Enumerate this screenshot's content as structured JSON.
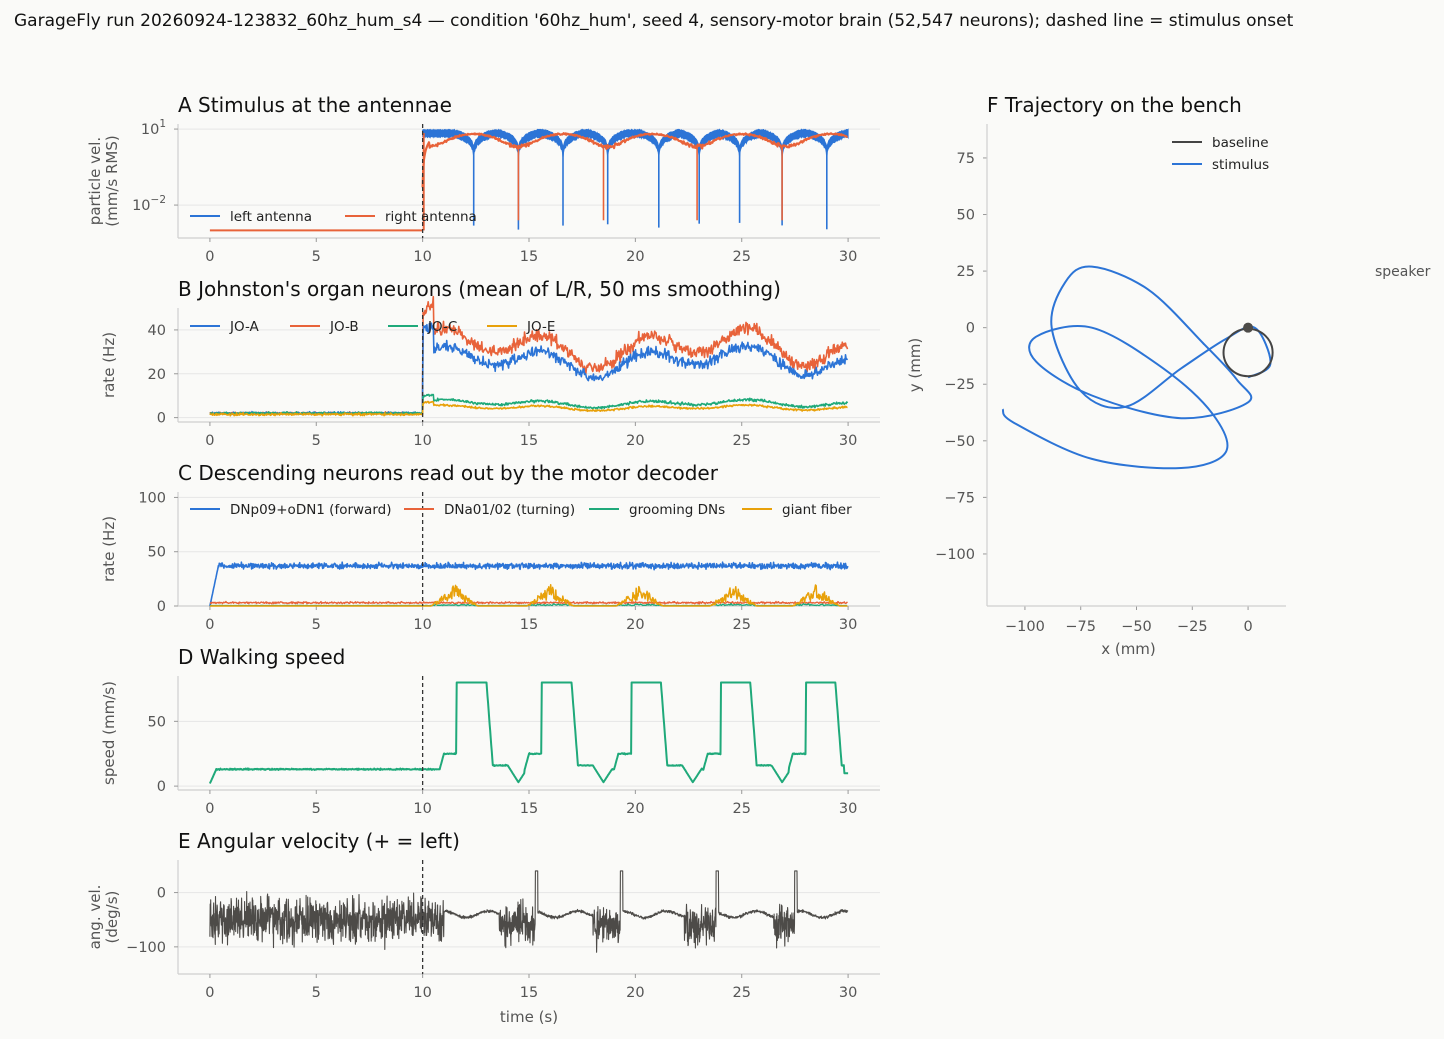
{
  "suptitle": "GarageFly run 20260924-123832_60hz_hum_s4 — condition '60hz_hum', seed 4, sensory-motor brain (52,547 neurons); dashed line = stimulus onset",
  "colors": {
    "blue": "#2c74d6",
    "orange": "#e8633a",
    "green": "#1fa97a",
    "gold": "#e8a10a",
    "gray": "#4d4b48",
    "baseline": "#444444"
  },
  "chart_data": [
    {
      "id": "A",
      "type": "line",
      "title": "A  Stimulus at the antennae",
      "ylabel": [
        "particle vel.",
        "(mm/s RMS)"
      ],
      "xlabel": "",
      "yscale": "log",
      "xlim": [
        -1.5,
        31.5
      ],
      "xticks": [
        0,
        5,
        10,
        15,
        20,
        25,
        30
      ],
      "yticks": [
        {
          "label_base": "10",
          "label_exp": "1"
        },
        {
          "label_base": "10",
          "label_exp": "−2"
        }
      ],
      "stimulus_onset": 10,
      "legend": {
        "placement": "lower-left",
        "entries": [
          "left antenna",
          "right antenna"
        ]
      },
      "series": [
        {
          "name": "left antenna",
          "color": "blue",
          "baseline_value": 0.001,
          "stimulus_peak": 7,
          "null_times": [
            12.4,
            14.5,
            16.6,
            18.7,
            21.1,
            23,
            24.9,
            26.9,
            29
          ]
        },
        {
          "name": "right antenna",
          "color": "orange",
          "baseline_value": 0.001,
          "stimulus_peak": 7,
          "null_times": [
            14.5,
            18.5,
            22.9,
            26.9
          ]
        }
      ]
    },
    {
      "id": "B",
      "type": "line",
      "title": "B  Johnston's organ neurons (mean of L/R, 50 ms smoothing)",
      "ylabel": [
        "rate (Hz)"
      ],
      "xlabel": "",
      "xlim": [
        -1.5,
        31.5
      ],
      "ylim": [
        -2,
        50
      ],
      "xticks": [
        0,
        5,
        10,
        15,
        20,
        25,
        30
      ],
      "yticks": [
        0,
        20,
        40
      ],
      "stimulus_onset": 10,
      "legend": {
        "placement": "top-left",
        "entries": [
          "JO-A",
          "JO-B",
          "JO-C",
          "JO-E"
        ]
      },
      "series": [
        {
          "name": "JO-A",
          "color": "blue",
          "baseline": 2,
          "stimulus_mean": 26
        },
        {
          "name": "JO-B",
          "color": "orange",
          "baseline": 2,
          "stimulus_mean": 32
        },
        {
          "name": "JO-C",
          "color": "green",
          "baseline": 2,
          "stimulus_mean": 6.5
        },
        {
          "name": "JO-E",
          "color": "gold",
          "baseline": 1.5,
          "stimulus_mean": 4.5
        }
      ]
    },
    {
      "id": "C",
      "type": "line",
      "title": "C  Descending neurons read out by the motor decoder",
      "ylabel": [
        "rate (Hz)"
      ],
      "xlabel": "",
      "xlim": [
        -1.5,
        31.5
      ],
      "ylim": [
        0,
        105
      ],
      "xticks": [
        0,
        5,
        10,
        15,
        20,
        25,
        30
      ],
      "yticks": [
        0,
        50,
        100
      ],
      "stimulus_onset": 10,
      "legend": {
        "placement": "top",
        "entries": [
          "DNp09+oDN1 (forward)",
          "DNa01/02 (turning)",
          "grooming DNs",
          "giant fiber"
        ]
      },
      "series": [
        {
          "name": "DNp09+oDN1 (forward)",
          "color": "blue",
          "mean": 37
        },
        {
          "name": "DNa01/02 (turning)",
          "color": "orange",
          "mean": 3
        },
        {
          "name": "grooming DNs",
          "color": "green",
          "mean": 0.5
        },
        {
          "name": "giant fiber",
          "color": "gold",
          "burst_times": [
            11.5,
            16,
            20.2,
            24.6,
            28.5
          ],
          "burst_peak": 20
        }
      ]
    },
    {
      "id": "D",
      "type": "line",
      "title": "D  Walking speed",
      "ylabel": [
        "speed (mm/s)"
      ],
      "xlabel": "",
      "xlim": [
        -1.5,
        31.5
      ],
      "ylim": [
        -3,
        85
      ],
      "xticks": [
        0,
        5,
        10,
        15,
        20,
        25,
        30
      ],
      "yticks": [
        0,
        50
      ],
      "stimulus_onset": 10,
      "series": [
        {
          "name": "speed",
          "color": "green",
          "baseline": 13,
          "burst_starts": [
            11.6,
            15.6,
            19.8,
            24,
            28
          ],
          "plateau": 80,
          "shoulder": 25,
          "dip": 3
        }
      ]
    },
    {
      "id": "E",
      "type": "line",
      "title": "E  Angular velocity (+ = left)",
      "ylabel": [
        "ang. vel.",
        "(deg/s)"
      ],
      "xlabel": "time (s)",
      "xlim": [
        -1.5,
        31.5
      ],
      "ylim": [
        -150,
        60
      ],
      "xticks": [
        0,
        5,
        10,
        15,
        20,
        25,
        30
      ],
      "yticks": [
        0,
        -100
      ],
      "stimulus_onset": 10,
      "series": [
        {
          "name": "angular velocity",
          "color": "gray",
          "quiet_level": -40,
          "turn_bursts": [
            [
              13.6,
              15.3
            ],
            [
              18,
              19.3
            ],
            [
              22.3,
              23.8
            ],
            [
              26.5,
              27.5
            ]
          ]
        }
      ]
    },
    {
      "id": "F",
      "type": "line",
      "title": "F  Trajectory on the bench",
      "xlabel": "x (mm)",
      "ylabel": [
        "y (mm)"
      ],
      "xlim": [
        -117,
        17
      ],
      "ylim": [
        -123,
        90
      ],
      "xticks": [
        -100,
        -75,
        -50,
        -25,
        0
      ],
      "yticks": [
        75,
        50,
        25,
        0,
        -25,
        -50,
        -75,
        -100
      ],
      "annotation": "speaker",
      "legend": {
        "placement": "top-right",
        "entries": [
          "baseline",
          "stimulus"
        ]
      },
      "series": [
        {
          "name": "baseline",
          "color": "baseline",
          "shape": "loop",
          "center": [
            0,
            -11
          ],
          "radius": 11
        },
        {
          "name": "stimulus",
          "color": "blue",
          "points": [
            [
              0,
              -22
            ],
            [
              10,
              -16
            ],
            [
              3,
              0
            ],
            [
              -10,
              -5
            ],
            [
              -30,
              -18
            ],
            [
              -55,
              -35
            ],
            [
              -75,
              -28
            ],
            [
              -88,
              0
            ],
            [
              -82,
              20
            ],
            [
              -70,
              27
            ],
            [
              -45,
              17
            ],
            [
              -20,
              -7
            ],
            [
              -5,
              -23
            ],
            [
              0,
              -33
            ],
            [
              -30,
              -40
            ],
            [
              -70,
              -30
            ],
            [
              -95,
              -15
            ],
            [
              -95,
              -4
            ],
            [
              -70,
              0
            ],
            [
              -38,
              -18
            ],
            [
              -16,
              -38
            ],
            [
              -10,
              -55
            ],
            [
              -30,
              -62
            ],
            [
              -70,
              -58
            ],
            [
              -105,
              -42
            ],
            [
              -110,
              -36
            ]
          ]
        }
      ]
    }
  ]
}
